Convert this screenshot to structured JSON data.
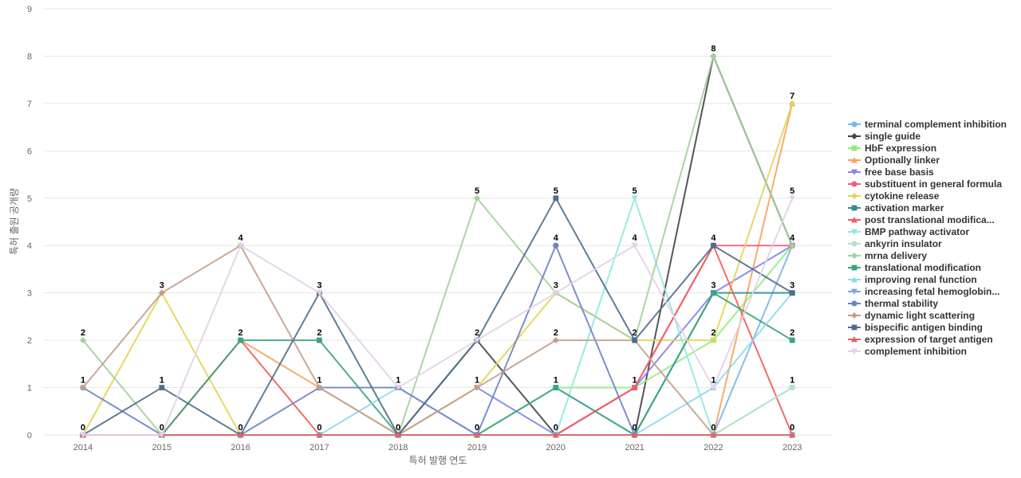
{
  "chart_data": {
    "type": "line",
    "title": "",
    "xlabel": "특허 발행 연도",
    "ylabel": "특허 출원 공개량",
    "x": [
      2014,
      2015,
      2016,
      2017,
      2018,
      2019,
      2020,
      2021,
      2022,
      2023
    ],
    "ylim": [
      0,
      9
    ],
    "yticks": [
      0,
      1,
      2,
      3,
      4,
      5,
      6,
      7,
      8,
      9
    ],
    "grid": true,
    "legend_position": "right",
    "series": [
      {
        "name": "terminal complement inhibition",
        "color": "#7cb5ec",
        "marker": "circle",
        "values": [
          0,
          0,
          0,
          0,
          0,
          0,
          1,
          0,
          0,
          4
        ]
      },
      {
        "name": "single guide",
        "color": "#434348",
        "marker": "diamond",
        "values": [
          0,
          0,
          0,
          0,
          0,
          2,
          0,
          0,
          8,
          4
        ]
      },
      {
        "name": "HbF expression",
        "color": "#90ed7d",
        "marker": "square",
        "values": [
          0,
          0,
          0,
          0,
          0,
          0,
          1,
          1,
          2,
          4
        ]
      },
      {
        "name": "Optionally linker",
        "color": "#f7a35c",
        "marker": "triangle",
        "values": [
          0,
          0,
          2,
          1,
          0,
          0,
          0,
          0,
          0,
          7
        ]
      },
      {
        "name": "free base basis",
        "color": "#8085e9",
        "marker": "triangle-down",
        "values": [
          0,
          0,
          0,
          0,
          0,
          1,
          0,
          1,
          3,
          4
        ]
      },
      {
        "name": "substituent in general formula",
        "color": "#f15c80",
        "marker": "circle",
        "values": [
          0,
          0,
          0,
          0,
          0,
          0,
          0,
          1,
          4,
          4
        ]
      },
      {
        "name": "cytokine release",
        "color": "#e4d354",
        "marker": "diamond",
        "values": [
          0,
          3,
          0,
          0,
          0,
          1,
          3,
          2,
          2,
          7
        ]
      },
      {
        "name": "activation marker",
        "color": "#2b908f",
        "marker": "square",
        "values": [
          0,
          0,
          0,
          0,
          0,
          0,
          0,
          0,
          3,
          3
        ]
      },
      {
        "name": "post translational modifica...",
        "color": "#f45b5b",
        "marker": "triangle",
        "values": [
          0,
          0,
          2,
          0,
          0,
          0,
          0,
          1,
          4,
          0
        ]
      },
      {
        "name": "BMP pathway activator",
        "color": "#91e8e1",
        "marker": "triangle-down",
        "values": [
          0,
          0,
          0,
          0,
          0,
          0,
          0,
          5,
          0,
          1
        ]
      },
      {
        "name": "ankyrin insulator",
        "color": "#b8e0c8",
        "marker": "circle",
        "values": [
          0,
          0,
          0,
          0,
          0,
          0,
          0,
          0,
          0,
          1
        ]
      },
      {
        "name": "mrna delivery",
        "color": "#a3cf9a",
        "marker": "diamond",
        "values": [
          2,
          0,
          0,
          0,
          0,
          5,
          3,
          2,
          8,
          4
        ]
      },
      {
        "name": "translational modification",
        "color": "#3aa47f",
        "marker": "square",
        "values": [
          0,
          0,
          2,
          2,
          0,
          0,
          1,
          0,
          3,
          2
        ]
      },
      {
        "name": "improving renal function",
        "color": "#8fd8ec",
        "marker": "triangle",
        "values": [
          0,
          0,
          0,
          0,
          1,
          0,
          0,
          0,
          1,
          3
        ]
      },
      {
        "name": "increasing fetal hemoglobin...",
        "color": "#7ba7d6",
        "marker": "triangle-down",
        "values": [
          0,
          0,
          0,
          0,
          0,
          0,
          0,
          0,
          0,
          0
        ]
      },
      {
        "name": "thermal stability",
        "color": "#6f81c7",
        "marker": "circle",
        "values": [
          1,
          0,
          0,
          1,
          1,
          0,
          4,
          0,
          0,
          0
        ]
      },
      {
        "name": "dynamic light scattering",
        "color": "#c2a08d",
        "marker": "diamond",
        "values": [
          1,
          3,
          4,
          1,
          0,
          1,
          2,
          2,
          0,
          0
        ]
      },
      {
        "name": "bispecific antigen binding",
        "color": "#4e6f8c",
        "marker": "square",
        "values": [
          0,
          1,
          0,
          3,
          0,
          2,
          5,
          2,
          4,
          3
        ]
      },
      {
        "name": "expression of target antigen",
        "color": "#e06666",
        "marker": "triangle",
        "values": [
          0,
          0,
          0,
          0,
          0,
          0,
          0,
          0,
          0,
          0
        ]
      },
      {
        "name": "complement inhibition",
        "color": "#e3d0e8",
        "marker": "triangle-down",
        "values": [
          0,
          0,
          4,
          3,
          1,
          2,
          3,
          4,
          1,
          5
        ]
      }
    ],
    "data_labels": [
      {
        "x": 2014,
        "values": [
          0,
          1,
          2
        ]
      },
      {
        "x": 2015,
        "values": [
          0,
          1,
          3
        ]
      },
      {
        "x": 2016,
        "values": [
          0,
          2,
          4
        ]
      },
      {
        "x": 2017,
        "values": [
          0,
          1,
          2,
          3
        ]
      },
      {
        "x": 2018,
        "values": [
          0,
          1
        ]
      },
      {
        "x": 2019,
        "values": [
          0,
          1,
          2,
          5
        ]
      },
      {
        "x": 2020,
        "values": [
          0,
          1,
          2,
          3,
          4,
          5
        ]
      },
      {
        "x": 2021,
        "values": [
          0,
          1,
          2,
          4,
          5
        ]
      },
      {
        "x": 2022,
        "values": [
          0,
          1,
          2,
          3,
          4,
          8
        ]
      },
      {
        "x": 2023,
        "values": [
          0,
          1,
          2,
          3,
          4,
          5,
          7
        ]
      }
    ]
  }
}
